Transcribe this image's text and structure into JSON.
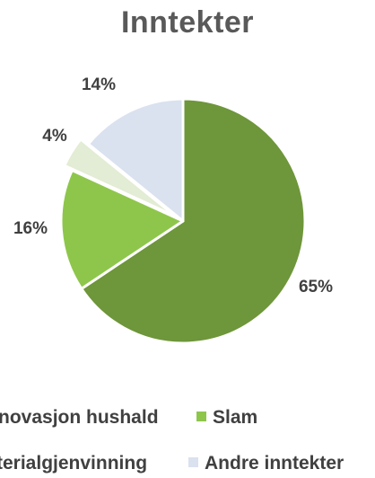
{
  "chart_data": {
    "type": "pie",
    "title": "Inntekter",
    "slices": [
      {
        "label": "Renovasjon hushald",
        "value": 65,
        "data_label": "65%",
        "color": "#6e963a"
      },
      {
        "label": "Slam",
        "value": 16,
        "data_label": "16%",
        "color": "#8ec64b"
      },
      {
        "label": "Materialgjenvinning",
        "value": 4,
        "data_label": "4%",
        "color": "#e3ecd4"
      },
      {
        "label": "Andre inntekter",
        "value": 14,
        "data_label": "14%",
        "color": "#dae1ef"
      }
    ],
    "visible_legend_text": [
      "novasjon hushald",
      "Slam",
      "terialgjenvinning",
      "Andre inntekter"
    ],
    "legend_position": "bottom"
  }
}
